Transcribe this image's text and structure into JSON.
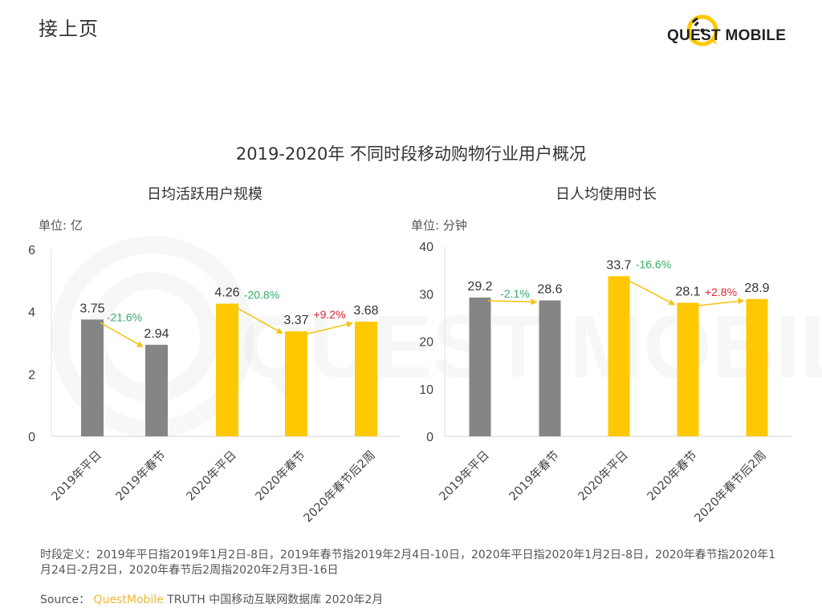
{
  "header": {
    "continue_label": "接上页",
    "logo_text": "QUEST MOBILE",
    "brand_color": "#FFC800"
  },
  "main_title": "2019-2020年 不同时段移动购物行业用户概况",
  "chart_data": [
    {
      "type": "bar",
      "title": "日均活跃用户规模",
      "unit_label": "单位: 亿",
      "xlabel": "",
      "ylabel": "",
      "ylim": [
        0,
        6
      ],
      "yticks": [
        0,
        2,
        4,
        6
      ],
      "grid": false,
      "categories": [
        "2019年平日",
        "2019年春节",
        "2020年平日",
        "2020年春节",
        "2020年春节后2周"
      ],
      "values": [
        3.75,
        2.94,
        4.26,
        3.37,
        3.68
      ],
      "value_labels": [
        "3.75",
        "2.94",
        "4.26",
        "3.37",
        "3.68"
      ],
      "bar_colors": [
        "#858585",
        "#858585",
        "#FFC800",
        "#FFC800",
        "#FFC800"
      ],
      "changes": [
        {
          "from": 0,
          "to": 1,
          "label": "-21.6%",
          "color": "#3aaa6a"
        },
        {
          "from": 2,
          "to": 3,
          "label": "-20.8%",
          "color": "#3aaa6a"
        },
        {
          "from": 3,
          "to": 4,
          "label": "+9.2%",
          "color": "#d9262b"
        }
      ]
    },
    {
      "type": "bar",
      "title": "日人均使用时长",
      "unit_label": "单位: 分钟",
      "xlabel": "",
      "ylabel": "",
      "ylim": [
        0,
        40
      ],
      "yticks": [
        0,
        10,
        20,
        30,
        40
      ],
      "grid": false,
      "categories": [
        "2019年平日",
        "2019年春节",
        "2020年平日",
        "2020年春节",
        "2020年春节后2周"
      ],
      "values": [
        29.2,
        28.6,
        33.7,
        28.1,
        28.9
      ],
      "value_labels": [
        "29.2",
        "28.6",
        "33.7",
        "28.1",
        "28.9"
      ],
      "bar_colors": [
        "#858585",
        "#858585",
        "#FFC800",
        "#FFC800",
        "#FFC800"
      ],
      "changes": [
        {
          "from": 0,
          "to": 1,
          "label": "-2.1%",
          "color": "#3aaa6a"
        },
        {
          "from": 2,
          "to": 3,
          "label": "-16.6%",
          "color": "#3aaa6a"
        },
        {
          "from": 3,
          "to": 4,
          "label": "+2.8%",
          "color": "#d9262b"
        }
      ]
    }
  ],
  "footnote": "时段定义：2019年平日指2019年1月2日-8日，2019年春节指2019年2月4日-10日，2020年平日指2020年1月2日-8日，2020年春节指2020年1月24日-2月2日，2020年春节后2周指2020年2月3日-16日",
  "source": {
    "prefix": "Source：",
    "brand": "QuestMobile",
    "rest": "TRUTH 中国移动互联网数据库 2020年2月"
  },
  "watermark_text": "QUEST MOBILE"
}
